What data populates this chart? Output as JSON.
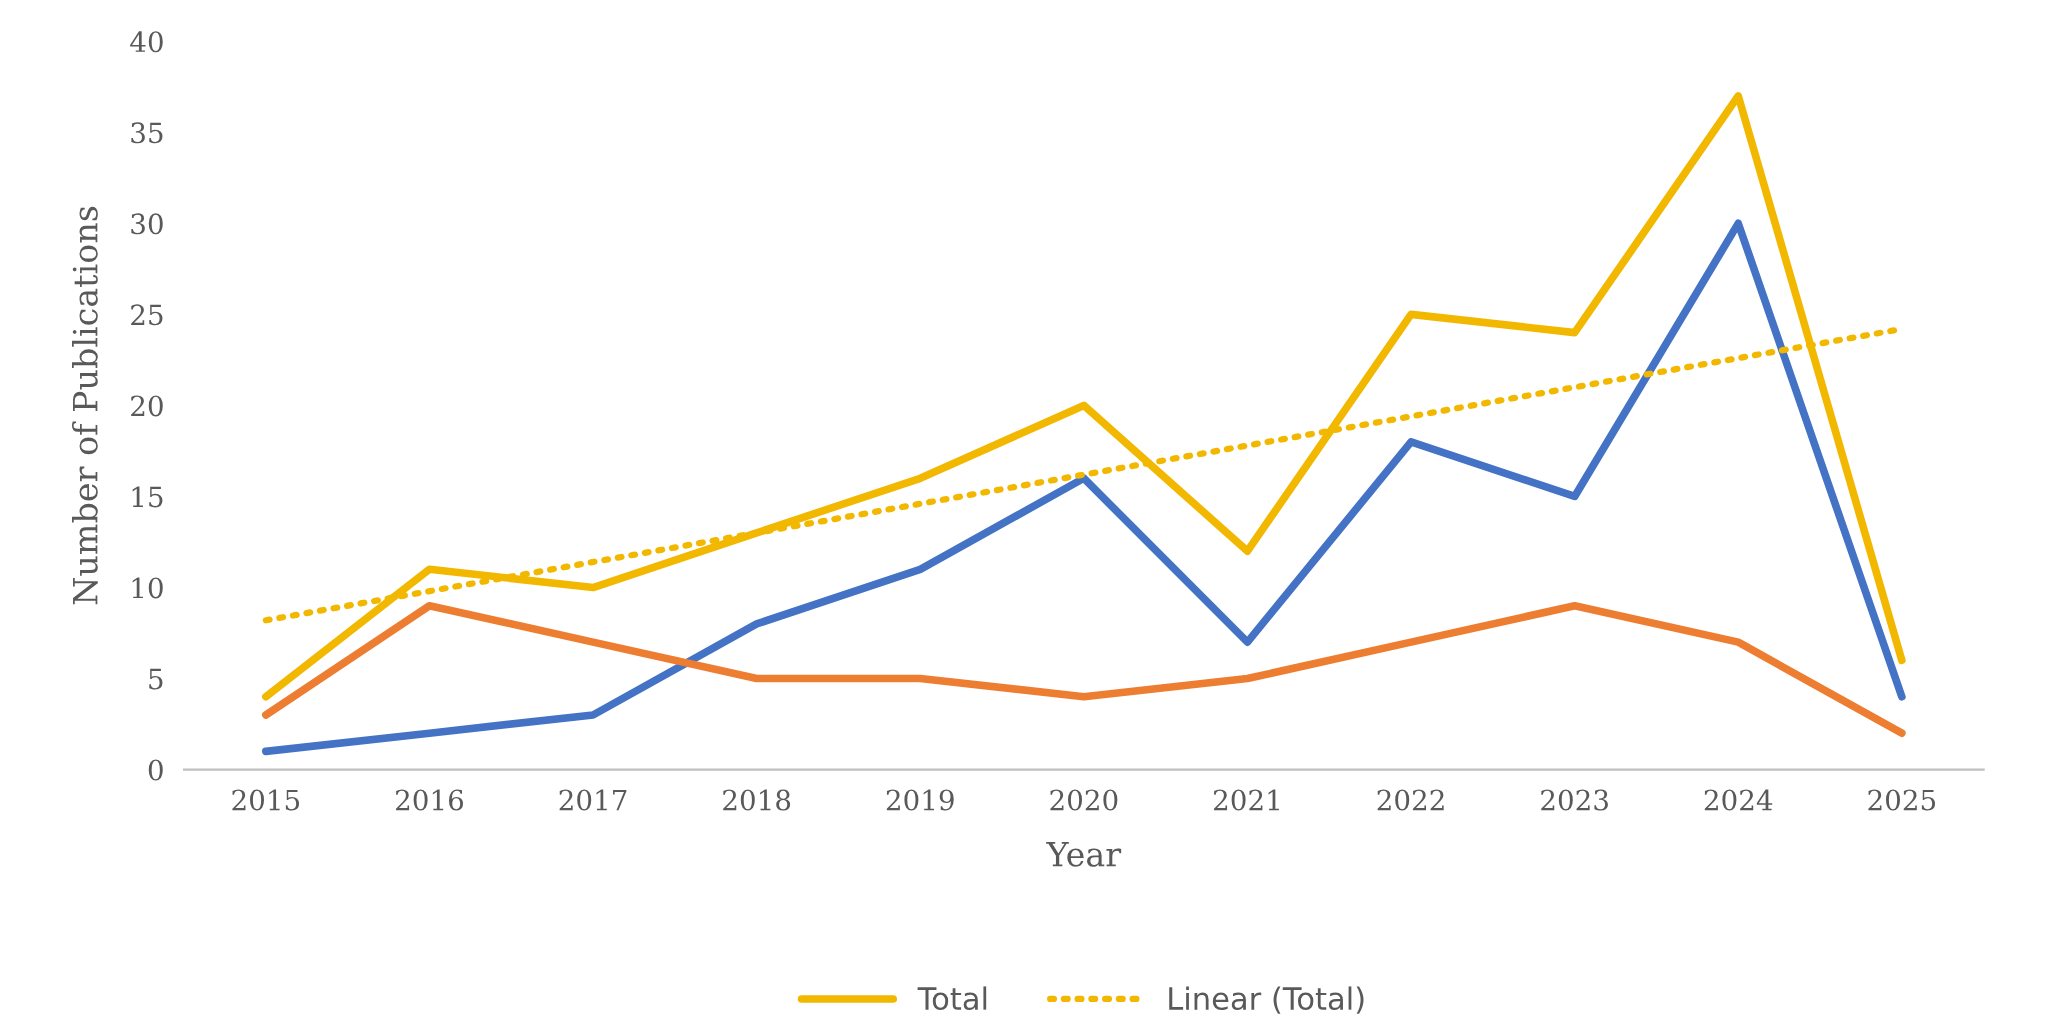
{
  "chart_data": {
    "type": "line",
    "xlabel": "Year",
    "ylabel": "Number of Publications",
    "x": [
      2015,
      2016,
      2017,
      2018,
      2019,
      2020,
      2021,
      2022,
      2023,
      2024,
      2025
    ],
    "xlim": [
      2014.5,
      2025.5
    ],
    "xticks": [
      2015,
      2016,
      2017,
      2018,
      2019,
      2020,
      2021,
      2022,
      2023,
      2024,
      2025
    ],
    "ylim": [
      0,
      40
    ],
    "yticks": [
      0,
      5,
      10,
      15,
      20,
      25,
      30,
      35,
      40
    ],
    "grid": false,
    "legend": "bottom",
    "marker": "none",
    "series": [
      {
        "color": "#4472c4",
        "values": [
          1,
          2,
          3,
          8,
          11,
          16,
          7,
          18,
          15,
          30,
          4
        ]
      },
      {
        "color": "#ed7d31",
        "values": [
          3,
          9,
          7,
          5,
          5,
          4,
          5,
          7,
          9,
          7,
          2
        ]
      },
      {
        "name": "Total",
        "color": "#f2b800",
        "values": [
          4,
          11,
          10,
          13,
          16,
          20,
          12,
          25,
          24,
          37,
          6
        ]
      },
      {
        "name": "Linear (Total)",
        "color": "#f2b800",
        "line_style": "dotted",
        "x": [
          2015,
          2025
        ],
        "values": [
          8.2,
          24.2
        ]
      }
    ]
  }
}
